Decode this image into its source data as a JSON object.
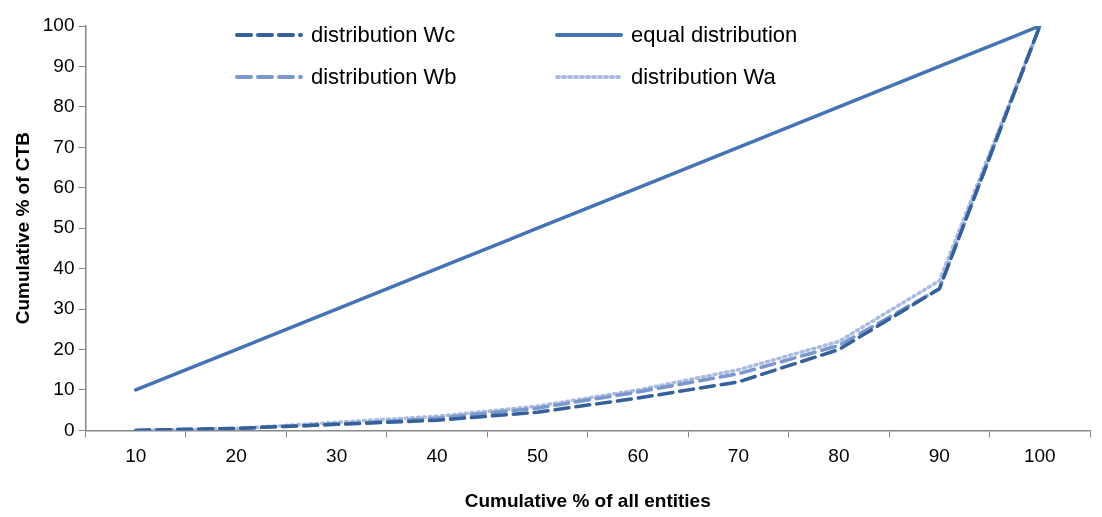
{
  "chart_data": {
    "type": "line",
    "xlabel": "Cumulative % of all entities",
    "ylabel": "Cumulative % of CTB",
    "categories": [
      "10",
      "20",
      "30",
      "40",
      "50",
      "60",
      "70",
      "80",
      "90",
      "100"
    ],
    "ylim": [
      0,
      100
    ],
    "yticks": [
      0,
      10,
      20,
      30,
      40,
      50,
      60,
      70,
      80,
      90,
      100
    ],
    "grid": false,
    "legend": "top",
    "marker": "none",
    "series": [
      {
        "name": "distribution Wc",
        "color": "#35609a",
        "line_style": "dashed",
        "values": [
          0,
          0.5,
          1.5,
          2.5,
          4.5,
          8,
          12,
          20,
          35,
          100
        ]
      },
      {
        "name": "equal distribution",
        "color": "#4573b5",
        "line_style": "solid",
        "values": [
          10,
          20,
          30,
          40,
          50,
          60,
          70,
          80,
          90,
          100
        ]
      },
      {
        "name": "distribution Wb",
        "color": "#7b98cc",
        "line_style": "dashed",
        "values": [
          0,
          0.5,
          1.5,
          3,
          5.5,
          9.5,
          14,
          21,
          35,
          100
        ]
      },
      {
        "name": "distribution Wa",
        "color": "#a9bbdf",
        "line_style": "dotted",
        "values": [
          0,
          0.5,
          2,
          3.5,
          6,
          10,
          15,
          22,
          37,
          100
        ]
      }
    ]
  }
}
